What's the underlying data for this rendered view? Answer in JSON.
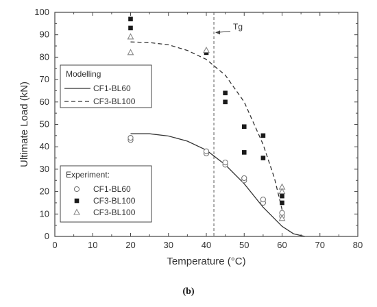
{
  "chart_data": {
    "type": "scatter",
    "xlabel": "Temperature (°C)",
    "ylabel": "Ultimate Load (kN)",
    "xlim": [
      0,
      80
    ],
    "ylim": [
      0,
      100
    ],
    "x_ticks": [
      "0",
      "10",
      "20",
      "30",
      "40",
      "50",
      "60",
      "70",
      "80"
    ],
    "y_ticks": [
      "0",
      "10",
      "20",
      "30",
      "40",
      "50",
      "60",
      "70",
      "80",
      "90",
      "100"
    ],
    "grid": false,
    "tg_label": "Tg",
    "tg_x": 42,
    "modelling_legend_title": "Modelling",
    "experiment_legend_title": "Experiment:",
    "modelling_series": [
      {
        "name": "CF1-BL60",
        "style": "solid",
        "points": [
          [
            20,
            45.8
          ],
          [
            25,
            45.8
          ],
          [
            30,
            44.8
          ],
          [
            35,
            42.5
          ],
          [
            40,
            38.5
          ],
          [
            45,
            32
          ],
          [
            50,
            23.5
          ],
          [
            55,
            13
          ],
          [
            60,
            4.5
          ],
          [
            63,
            1.2
          ],
          [
            66,
            0
          ]
        ]
      },
      {
        "name": "CF3-BL100",
        "style": "dashed",
        "points": [
          [
            20,
            86.8
          ],
          [
            25,
            86.5
          ],
          [
            30,
            85.5
          ],
          [
            35,
            83
          ],
          [
            40,
            79
          ],
          [
            45,
            72
          ],
          [
            50,
            60
          ],
          [
            55,
            41
          ],
          [
            58,
            26
          ],
          [
            60,
            12
          ]
        ]
      }
    ],
    "experiment_series": [
      {
        "name": "CF1-BL60",
        "marker": "open-circle",
        "points": [
          [
            20,
            43
          ],
          [
            20,
            44
          ],
          [
            40,
            37
          ],
          [
            40,
            38
          ],
          [
            45,
            32
          ],
          [
            45,
            33
          ],
          [
            50,
            25
          ],
          [
            50,
            26
          ],
          [
            55,
            15
          ],
          [
            55,
            16.5
          ],
          [
            60,
            9
          ],
          [
            60,
            10.5
          ]
        ]
      },
      {
        "name": "CF3-BL100",
        "marker": "filled-square",
        "points": [
          [
            20,
            97
          ],
          [
            20,
            93
          ],
          [
            40,
            82
          ],
          [
            45,
            64
          ],
          [
            45,
            60
          ],
          [
            50,
            49
          ],
          [
            50,
            37.5
          ],
          [
            55,
            45
          ],
          [
            55,
            35
          ],
          [
            60,
            18
          ],
          [
            60,
            15
          ]
        ]
      },
      {
        "name": "CF3-BL100",
        "marker": "open-triangle",
        "points": [
          [
            20,
            89
          ],
          [
            20,
            82
          ],
          [
            40,
            83
          ],
          [
            60,
            22
          ],
          [
            60,
            20
          ],
          [
            60,
            8
          ]
        ]
      }
    ]
  },
  "caption": "(b)"
}
